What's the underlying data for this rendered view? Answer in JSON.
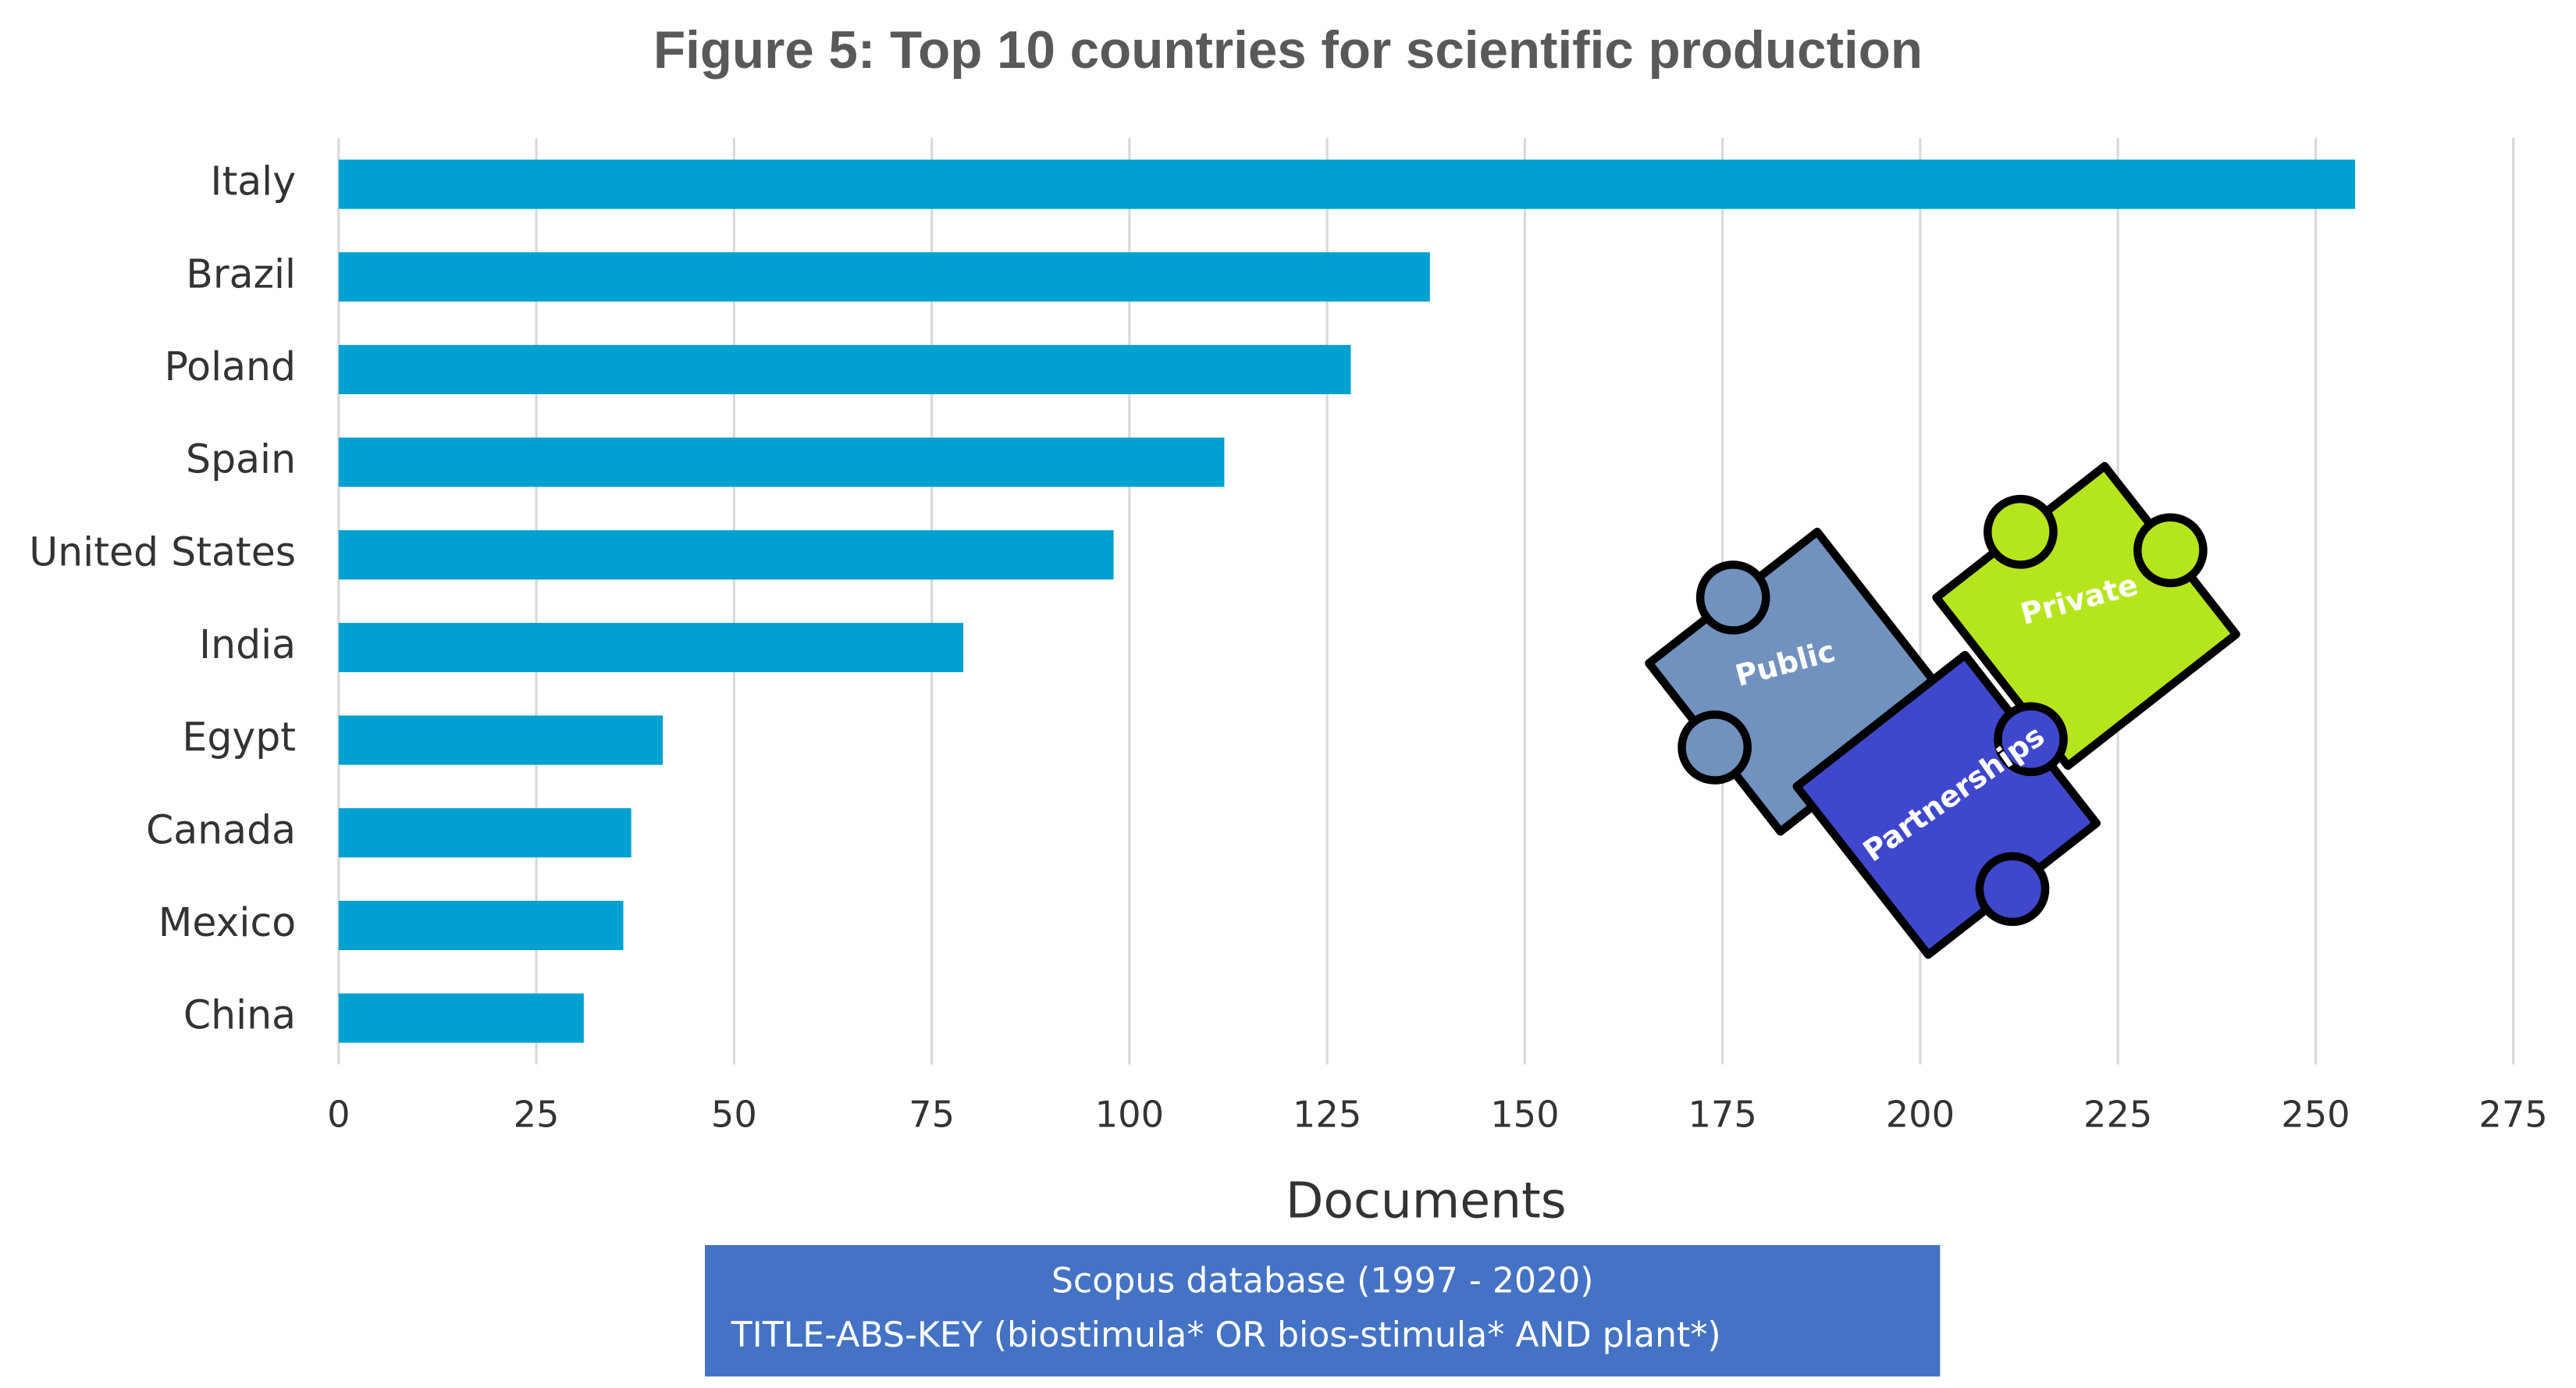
{
  "chart_data": {
    "type": "barh",
    "title": "Figure 5: Top 10 countries for scientific production",
    "x_label": "Documents",
    "categories": [
      "Italy",
      "Brazil",
      "Poland",
      "Spain",
      "United States",
      "India",
      "Egypt",
      "Canada",
      "Mexico",
      "China"
    ],
    "values": [
      255,
      138,
      128,
      112,
      98,
      79,
      41,
      37,
      36,
      31
    ],
    "color": "#00a0d0",
    "xlim": [
      0,
      275
    ],
    "xticks": [
      0,
      25,
      50,
      75,
      100,
      125,
      150,
      175,
      200,
      225,
      250,
      275
    ],
    "grid": true,
    "note": [
      "Scopus database (1997 - 2020)",
      "TITLE-ABS-KEY (biostimula* OR bios-stimula* AND plant*)"
    ],
    "illustration": {
      "labels": [
        "Public",
        "Private",
        "Partnerships"
      ]
    }
  }
}
